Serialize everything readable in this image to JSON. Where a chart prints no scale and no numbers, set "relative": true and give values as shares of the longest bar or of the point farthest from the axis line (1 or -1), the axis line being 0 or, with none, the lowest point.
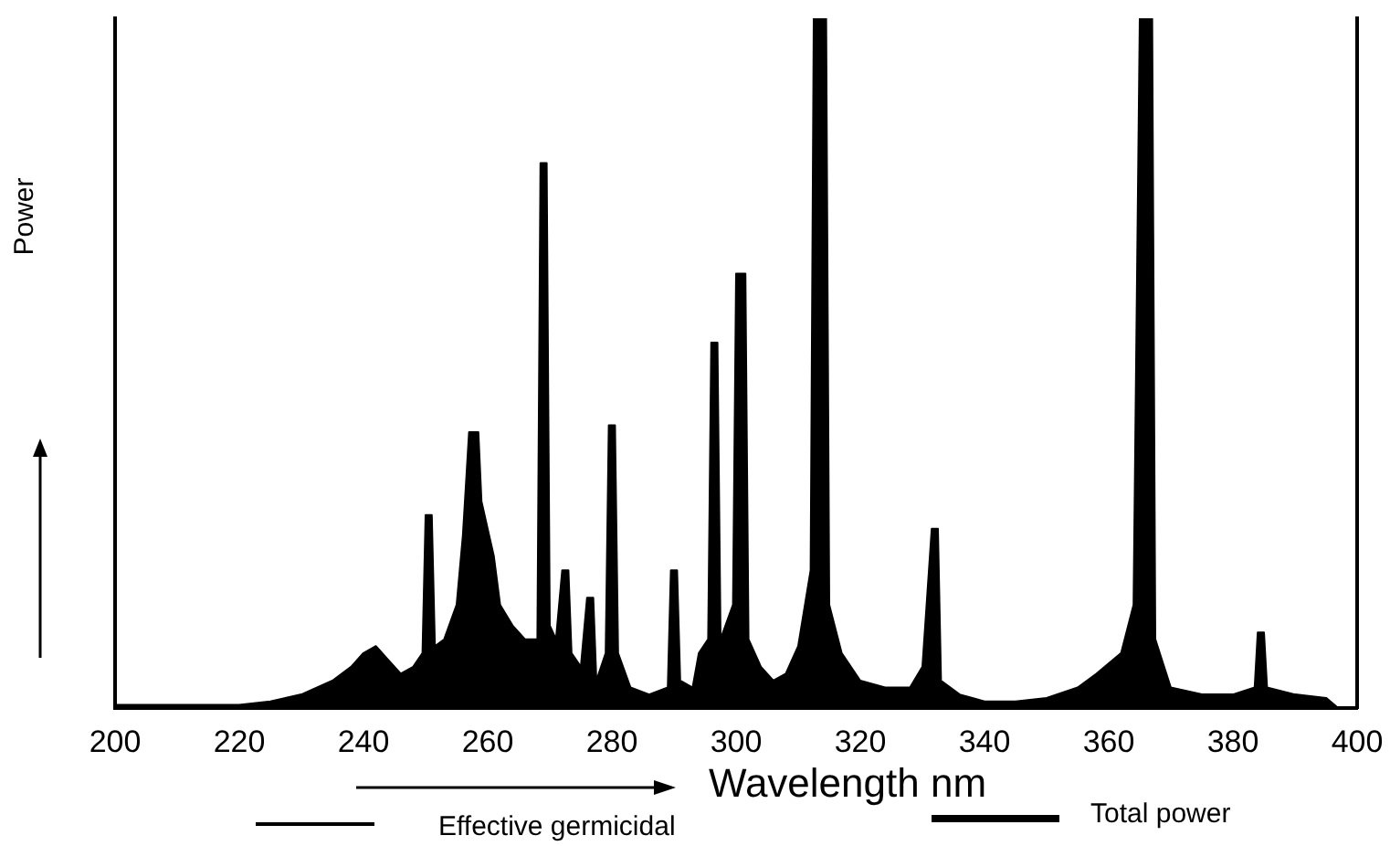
{
  "chart_data": {
    "type": "area",
    "relative": true,
    "xlabel": "Wavelength nm",
    "ylabel": "Power",
    "xlim": [
      200,
      400
    ],
    "xticks": [
      200,
      220,
      240,
      260,
      280,
      300,
      320,
      340,
      360,
      380,
      400
    ],
    "annotations": [
      "Effective germicidal",
      "Total power"
    ],
    "series": [
      {
        "color": "#000000",
        "x": [
          200,
          220,
          225,
          230,
          235,
          238,
          240,
          242,
          244,
          246,
          248,
          249.5,
          250,
          251,
          251.5,
          253,
          255,
          256,
          257,
          258.5,
          259,
          260,
          261,
          262,
          264,
          266,
          268,
          268.5,
          269.5,
          270,
          271,
          272,
          273,
          273.5,
          275,
          276,
          277,
          277.5,
          279,
          279.5,
          280.5,
          281,
          283,
          286,
          289,
          289.5,
          290.5,
          291,
          293,
          294,
          295.5,
          296,
          297,
          297.5,
          299.5,
          300,
          301.5,
          302,
          304,
          306,
          308,
          310,
          312,
          312.5,
          314.5,
          315,
          317,
          320,
          324,
          328,
          330,
          331.5,
          332.5,
          333,
          336,
          340,
          345,
          350,
          355,
          358,
          362,
          364,
          365,
          367,
          367.5,
          370,
          375,
          380,
          383.5,
          384,
          385,
          385.5,
          390,
          395,
          397
        ],
        "values": [
          0.005,
          0.005,
          0.01,
          0.02,
          0.04,
          0.06,
          0.08,
          0.09,
          0.07,
          0.05,
          0.06,
          0.08,
          0.28,
          0.28,
          0.09,
          0.1,
          0.15,
          0.25,
          0.4,
          0.4,
          0.3,
          0.26,
          0.22,
          0.15,
          0.12,
          0.1,
          0.1,
          0.79,
          0.79,
          0.12,
          0.1,
          0.2,
          0.2,
          0.08,
          0.06,
          0.16,
          0.16,
          0.04,
          0.08,
          0.41,
          0.41,
          0.08,
          0.03,
          0.02,
          0.03,
          0.2,
          0.2,
          0.04,
          0.03,
          0.08,
          0.1,
          0.53,
          0.53,
          0.1,
          0.15,
          0.63,
          0.63,
          0.1,
          0.06,
          0.04,
          0.05,
          0.09,
          0.2,
          1,
          1,
          0.15,
          0.08,
          0.04,
          0.03,
          0.03,
          0.06,
          0.26,
          0.26,
          0.04,
          0.02,
          0.01,
          0.01,
          0.015,
          0.03,
          0.05,
          0.08,
          0.15,
          1,
          1,
          0.1,
          0.03,
          0.02,
          0.02,
          0.03,
          0.11,
          0.11,
          0.03,
          0.02,
          0.015,
          0
        ]
      }
    ]
  }
}
